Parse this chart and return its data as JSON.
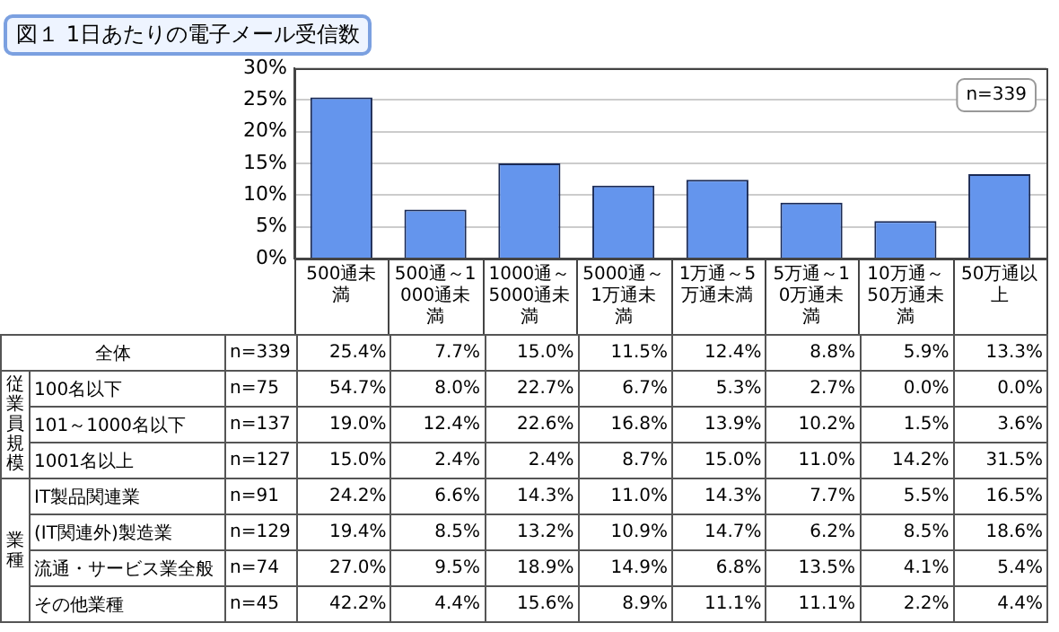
{
  "chart_data": [
    {
      "type": "bar",
      "title": "図１ 1日あたりの電子メール受信数",
      "categories": [
        "500通未満",
        "500通～1000通未満",
        "1000通～5000通未満",
        "5000通～1万通未満",
        "1万通～5万通未満",
        "5万通～10万通未満",
        "10万通～50万通未満",
        "50万通以上"
      ],
      "values": [
        25.4,
        7.7,
        15.0,
        11.5,
        12.4,
        8.8,
        5.9,
        13.3
      ],
      "color": "#6495ed",
      "ylim": [
        0,
        30
      ],
      "yticks": [
        {
          "value": 0,
          "label": "0%"
        },
        {
          "value": 5,
          "label": "5%"
        },
        {
          "value": 10,
          "label": "10%"
        },
        {
          "value": 15,
          "label": "15%"
        },
        {
          "value": 20,
          "label": "20%"
        },
        {
          "value": 25,
          "label": "25%"
        },
        {
          "value": 30,
          "label": "30%"
        }
      ],
      "grid": "y",
      "legend": false,
      "annotations": [
        "n=339"
      ]
    },
    {
      "type": "other",
      "y_categories": [
        "全体",
        "100名以下",
        "101～1000名以下",
        "1001名以上",
        "IT製品関連業",
        "(IT関連外)製造業",
        "流通・サービス業全般",
        "その他業種"
      ],
      "y2_categories": [
        "n=339",
        "n=75",
        "n=137",
        "n=127",
        "n=91",
        "n=129",
        "n=74",
        "n=45"
      ],
      "cell_labels": [
        [
          "25.4%",
          "7.7%",
          "15.0%",
          "11.5%",
          "12.4%",
          "8.8%",
          "5.9%",
          "13.3%"
        ],
        [
          "54.7%",
          "8.0%",
          "22.7%",
          "6.7%",
          "5.3%",
          "2.7%",
          "0.0%",
          "0.0%"
        ],
        [
          "19.0%",
          "12.4%",
          "22.6%",
          "16.8%",
          "13.9%",
          "10.2%",
          "1.5%",
          "3.6%"
        ],
        [
          "15.0%",
          "2.4%",
          "2.4%",
          "8.7%",
          "15.0%",
          "11.0%",
          "14.2%",
          "31.5%"
        ],
        [
          "24.2%",
          "6.6%",
          "14.3%",
          "11.0%",
          "14.3%",
          "7.7%",
          "5.5%",
          "16.5%"
        ],
        [
          "19.4%",
          "8.5%",
          "13.2%",
          "10.9%",
          "14.7%",
          "6.2%",
          "8.5%",
          "18.6%"
        ],
        [
          "27.0%",
          "9.5%",
          "18.9%",
          "14.9%",
          "6.8%",
          "13.5%",
          "4.1%",
          "5.4%"
        ],
        [
          "42.2%",
          "4.4%",
          "15.6%",
          "8.9%",
          "11.1%",
          "11.1%",
          "2.2%",
          "4.4%"
        ]
      ],
      "annotations": [
        {
          "text": "従業員規模",
          "y": "100名以下"
        },
        {
          "text": "業種",
          "y": "IT製品関連業"
        }
      ]
    }
  ]
}
